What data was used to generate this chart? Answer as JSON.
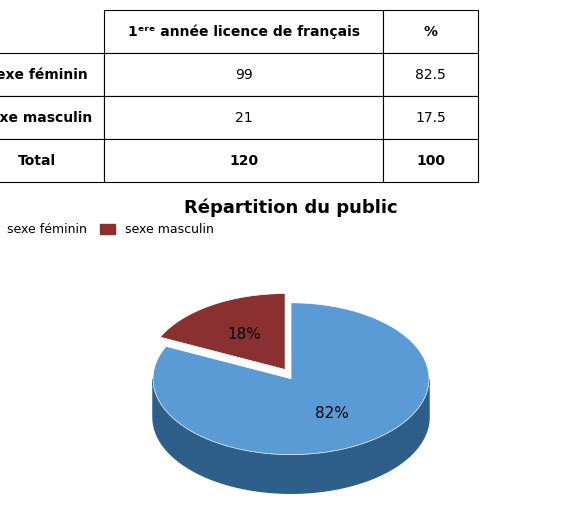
{
  "table": {
    "col_headers": [
      "",
      "1ᵉʳᵉ année licence de français",
      "%"
    ],
    "rows": [
      [
        "Sexe féminin",
        "99",
        "82.5"
      ],
      [
        "Sexe masculin",
        "21",
        "17.5"
      ],
      [
        "Total",
        "120",
        "100"
      ]
    ]
  },
  "pie": {
    "title": "Répartition du public",
    "labels": [
      "sexe féminin",
      "sexe masculin"
    ],
    "values": [
      82,
      18
    ],
    "colors": [
      "#5B9BD5",
      "#8B3030"
    ],
    "dark_colors": [
      "#2E5F8A",
      "#5A1515"
    ],
    "explode_dist": 0.08,
    "autopct_labels": [
      "82%",
      "18%"
    ],
    "start_angle": 90
  },
  "background_color": "#ffffff"
}
